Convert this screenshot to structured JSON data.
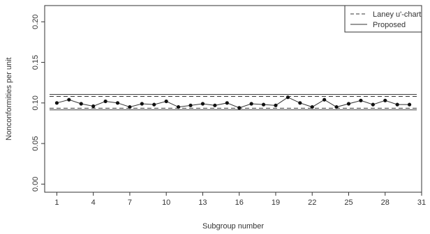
{
  "chart_data": {
    "type": "line",
    "title": "",
    "xlabel": "Subgroup number",
    "ylabel": "Nonconformities per unit",
    "xlim": [
      0,
      31
    ],
    "ylim": [
      -0.01,
      0.22
    ],
    "x_ticks": [
      1,
      4,
      7,
      10,
      13,
      16,
      19,
      22,
      25,
      28,
      31
    ],
    "y_ticks": [
      0.0,
      0.05,
      0.1,
      0.15,
      0.2
    ],
    "y_tick_labels": [
      "0.00",
      "0.05",
      "0.10",
      "0.15",
      "0.20"
    ],
    "grid": false,
    "legend_position": "top-right",
    "series": [
      {
        "x": [
          1,
          2,
          3,
          4,
          5,
          6,
          7,
          8,
          9,
          10,
          11,
          12,
          13,
          14,
          15,
          16,
          17,
          18,
          19,
          20,
          21,
          22,
          23,
          24,
          25,
          26,
          27,
          28,
          29,
          30
        ],
        "values": [
          0.1,
          0.104,
          0.099,
          0.096,
          0.102,
          0.1,
          0.095,
          0.099,
          0.098,
          0.102,
          0.095,
          0.097,
          0.099,
          0.097,
          0.1,
          0.094,
          0.099,
          0.098,
          0.097,
          0.107,
          0.1,
          0.095,
          0.104,
          0.095,
          0.099,
          0.103,
          0.098,
          0.103,
          0.098,
          0.098
        ]
      }
    ],
    "control_limits": [
      {
        "name": "Laney u'-chart",
        "style": "dashed",
        "ucl": 0.108,
        "lcl": 0.0935
      },
      {
        "name": "Proposed",
        "style": "solid",
        "ucl": 0.1105,
        "lcl": 0.0915
      }
    ]
  }
}
